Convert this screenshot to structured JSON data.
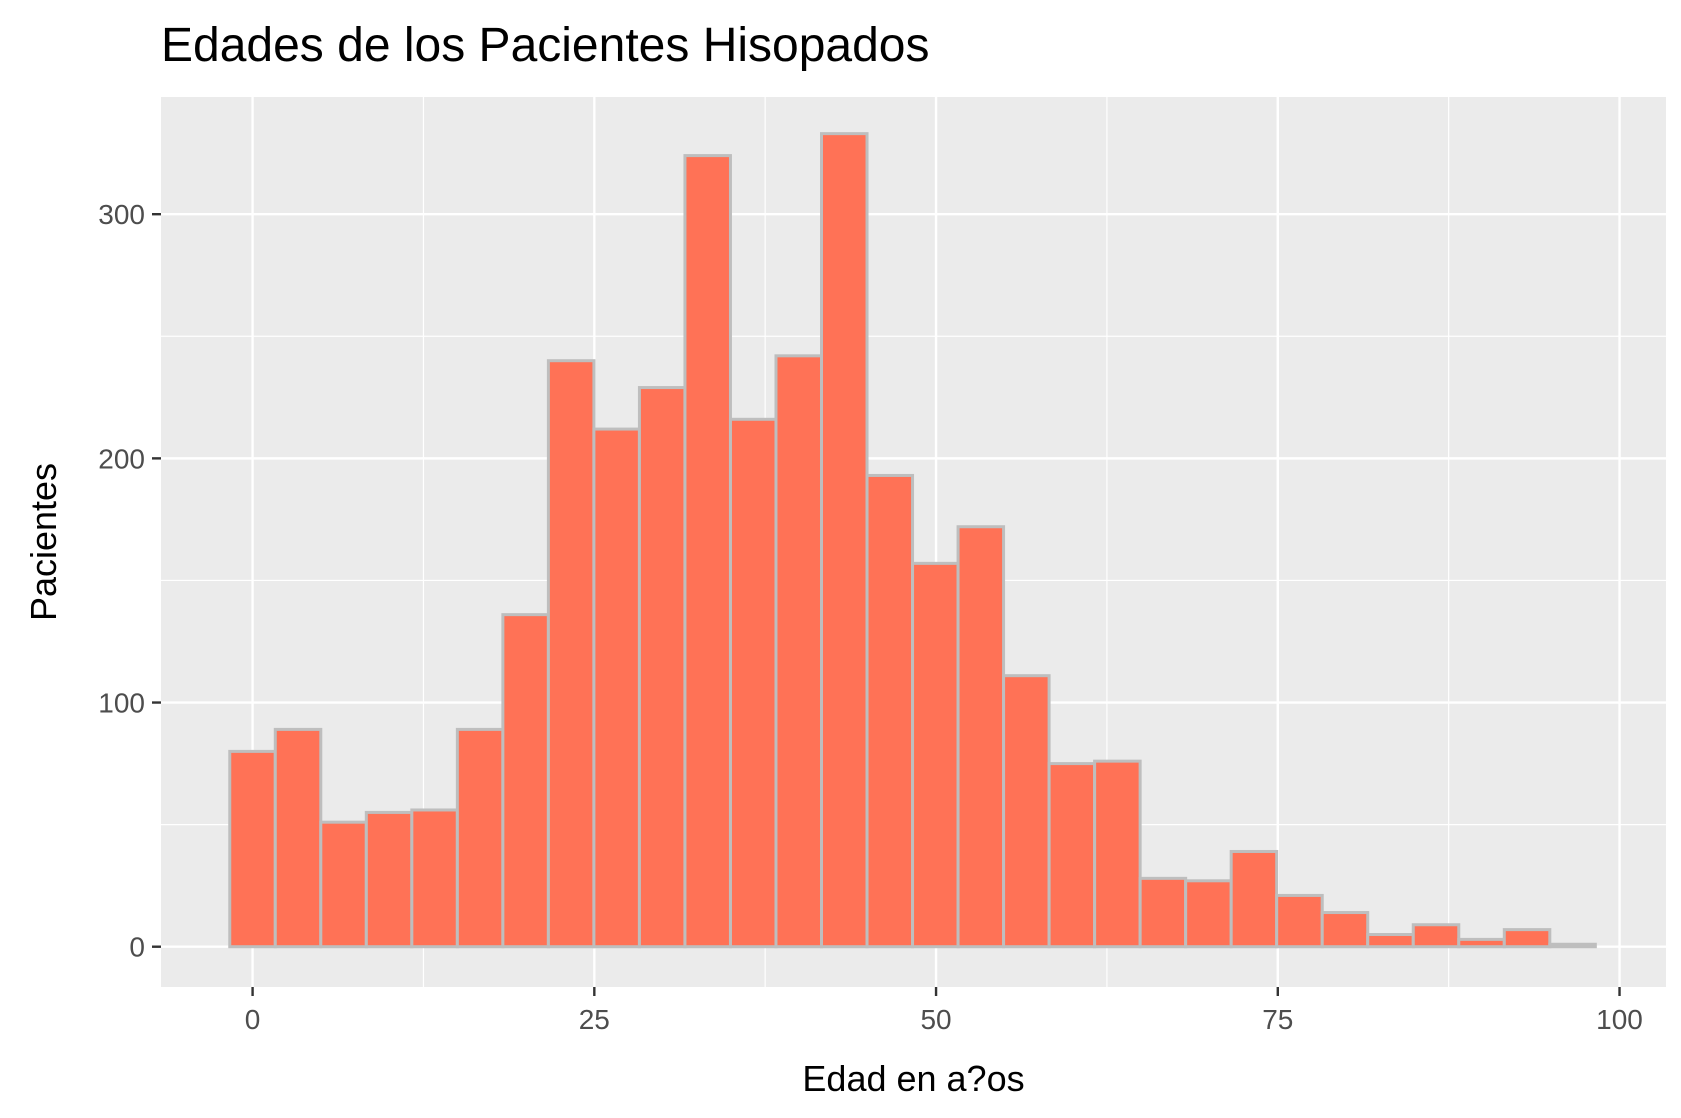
{
  "chart_data": {
    "type": "bar",
    "title": "Edades de los Pacientes Hisopados",
    "xlabel": "Edad en a?os",
    "ylabel": "Pacientes",
    "xlim": [
      -6.7,
      103.4
    ],
    "ylim": [
      -16.5,
      348
    ],
    "x_ticks": [
      0,
      25,
      50,
      75,
      100
    ],
    "x_tick_labels": [
      "0",
      "25",
      "50",
      "75",
      "100"
    ],
    "y_ticks": [
      0,
      100,
      200,
      300
    ],
    "y_tick_labels": [
      "0",
      "100",
      "200",
      "300"
    ],
    "bin_width": 3.33,
    "bin_start": -1.67,
    "values": [
      80,
      89,
      51,
      55,
      56,
      89,
      136,
      240,
      212,
      229,
      324,
      216,
      242,
      333,
      193,
      157,
      172,
      111,
      75,
      76,
      28,
      27,
      39,
      21,
      14,
      5,
      9,
      3,
      7,
      1
    ],
    "fill_color": "#FF7256",
    "border_color": "#BEBEBE",
    "panel_color": "#EBEBEB",
    "grid": true
  }
}
